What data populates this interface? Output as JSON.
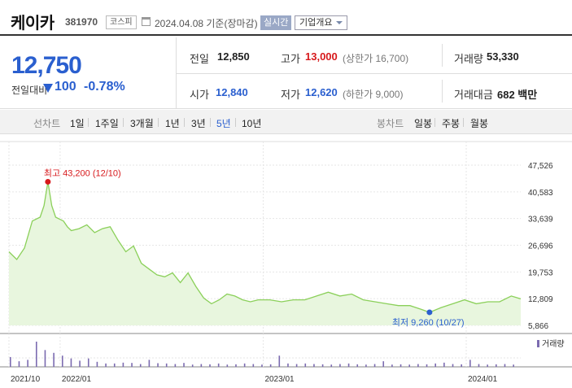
{
  "header": {
    "name": "케이카",
    "code": "381970",
    "market": "코스피",
    "date_text": "2024.04.08 기준(장마감)",
    "realtime_label": "실시간",
    "company_label": "기업개요"
  },
  "summary": {
    "price": "12,750",
    "change_label": "전일대비",
    "change_amount": "100",
    "change_rate": "-0.78%",
    "prev_close_label": "전일",
    "prev_close": "12,850",
    "high_label": "고가",
    "high": "13,000",
    "upper_limit": "(상한가 16,700)",
    "volume_label": "거래량",
    "volume": "53,330",
    "open_label": "시가",
    "open": "12,840",
    "low_label": "저가",
    "low": "12,620",
    "lower_limit": "(하한가 9,000)",
    "amount_label": "거래대금",
    "amount": "682 백만"
  },
  "period_tabs": {
    "label": "선차트",
    "items": [
      "1일",
      "1주일",
      "3개월",
      "1년",
      "3년",
      "5년",
      "10년"
    ],
    "active": "5년"
  },
  "candle_tabs": {
    "label": "봉차트",
    "items": [
      "일봉",
      "주봉",
      "월봉"
    ]
  },
  "colors": {
    "up": "#d7191c",
    "down": "#2a5fcf",
    "line": "#8bd05a",
    "area": "#e8f6de",
    "volume": "#7b6bb0"
  },
  "chart_data": {
    "type": "area",
    "y_ticks": [
      "47,526",
      "40,583",
      "33,639",
      "26,696",
      "19,753",
      "12,809",
      "5,866"
    ],
    "ylim": [
      5866,
      47526
    ],
    "x_ticks": [
      "2021/10",
      "2022/01",
      "2023/01",
      "2024/01"
    ],
    "x_range": [
      "2021-10-01",
      "2024-04-08"
    ],
    "high_label": "최고 43,200 (12/10)",
    "high": {
      "date": "2021-12-10",
      "value": 43200
    },
    "low_label": "최저 9,260 (10/27)",
    "low": {
      "date": "2023-10-27",
      "value": 9260
    },
    "volume_label": "거래량",
    "series": [
      {
        "x": [
          "2021-10-01",
          "2021-10-15",
          "2021-10-29",
          "2021-11-12",
          "2021-11-26",
          "2021-12-03",
          "2021-12-10",
          "2021-12-17",
          "2021-12-24",
          "2022-01-07",
          "2022-01-14",
          "2022-01-21",
          "2022-02-04",
          "2022-02-18",
          "2022-03-04",
          "2022-03-18",
          "2022-04-01",
          "2022-04-15",
          "2022-04-29",
          "2022-05-13",
          "2022-05-27",
          "2022-06-10",
          "2022-06-24",
          "2022-07-08",
          "2022-07-22",
          "2022-08-05",
          "2022-08-19",
          "2022-09-02",
          "2022-09-16",
          "2022-09-30",
          "2022-10-14",
          "2022-10-28",
          "2022-11-11",
          "2022-11-25",
          "2022-12-09",
          "2022-12-23",
          "2023-01-13",
          "2023-02-03",
          "2023-02-24",
          "2023-03-17",
          "2023-04-07",
          "2023-04-28",
          "2023-05-19",
          "2023-06-09",
          "2023-06-30",
          "2023-07-21",
          "2023-08-11",
          "2023-09-01",
          "2023-09-22",
          "2023-10-13",
          "2023-10-27",
          "2023-11-17",
          "2023-12-08",
          "2023-12-29",
          "2024-01-19",
          "2024-02-09",
          "2024-03-01",
          "2024-03-22",
          "2024-04-08"
        ],
        "values": [
          25000,
          23000,
          26000,
          33000,
          34000,
          37000,
          43200,
          37000,
          34000,
          33000,
          31500,
          30500,
          31000,
          32000,
          30000,
          31000,
          31500,
          28000,
          25000,
          26500,
          22000,
          20500,
          19000,
          18500,
          19500,
          17000,
          19500,
          16000,
          13000,
          11500,
          12500,
          14000,
          13500,
          12500,
          12000,
          12500,
          12500,
          12000,
          12500,
          12500,
          13500,
          14500,
          13500,
          14000,
          12500,
          12000,
          11500,
          11000,
          11000,
          10000,
          9260,
          10500,
          11500,
          12500,
          11500,
          12000,
          12000,
          13500,
          12750
        ]
      }
    ],
    "volumes": [
      35,
      20,
      25,
      90,
      60,
      50,
      40,
      30,
      22,
      30,
      18,
      12,
      12,
      15,
      14,
      10,
      25,
      13,
      12,
      10,
      14,
      8,
      10,
      9,
      12,
      8,
      9,
      12,
      10,
      8,
      9,
      40,
      12,
      10,
      12,
      10,
      9,
      8,
      10,
      12,
      9,
      8,
      10,
      20,
      8,
      9,
      8,
      10,
      9,
      12,
      15,
      10,
      9,
      25,
      10,
      8,
      9,
      10,
      8
    ]
  }
}
